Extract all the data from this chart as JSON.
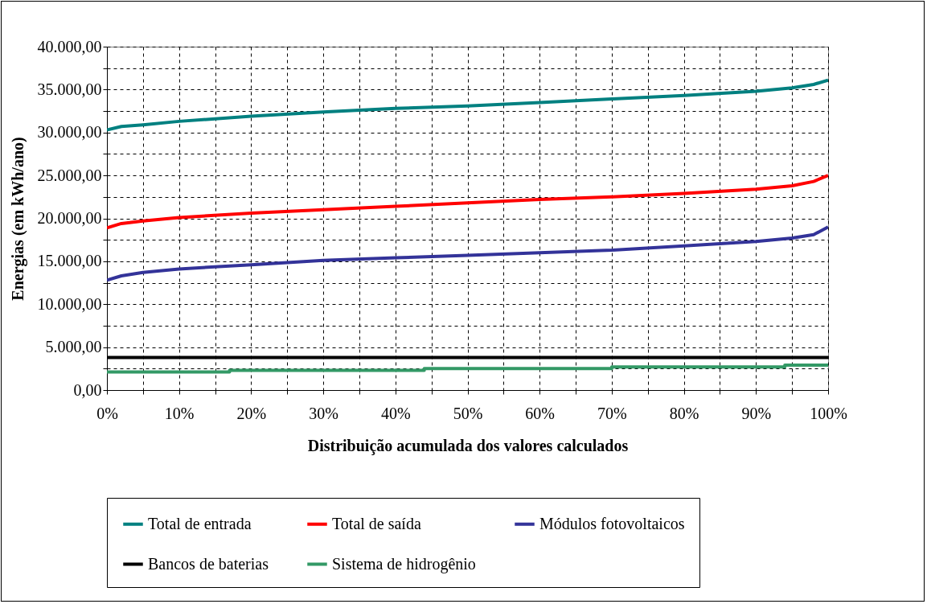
{
  "chart_data": {
    "type": "line",
    "xlabel": "Distribuição acumulada dos valores calculados",
    "ylabel": "Energias (em kWh/ano)",
    "x": [
      0,
      2,
      5,
      10,
      20,
      30,
      40,
      50,
      60,
      70,
      80,
      90,
      95,
      98,
      100
    ],
    "xlim": [
      0,
      100
    ],
    "xticks": [
      {
        "value": 0,
        "label": "0%"
      },
      {
        "value": 5,
        "label": null
      },
      {
        "value": 10,
        "label": "10%"
      },
      {
        "value": 15,
        "label": null
      },
      {
        "value": 20,
        "label": "20%"
      },
      {
        "value": 25,
        "label": null
      },
      {
        "value": 30,
        "label": "30%"
      },
      {
        "value": 35,
        "label": null
      },
      {
        "value": 40,
        "label": "40%"
      },
      {
        "value": 45,
        "label": null
      },
      {
        "value": 50,
        "label": "50%"
      },
      {
        "value": 55,
        "label": null
      },
      {
        "value": 60,
        "label": "60%"
      },
      {
        "value": 65,
        "label": null
      },
      {
        "value": 70,
        "label": "70%"
      },
      {
        "value": 75,
        "label": null
      },
      {
        "value": 80,
        "label": "80%"
      },
      {
        "value": 85,
        "label": null
      },
      {
        "value": 90,
        "label": "90%"
      },
      {
        "value": 95,
        "label": null
      },
      {
        "value": 100,
        "label": "100%"
      }
    ],
    "ylim": [
      0,
      40000
    ],
    "yticks": [
      {
        "value": 0,
        "label": "0,00"
      },
      {
        "value": 2500,
        "label": null
      },
      {
        "value": 5000,
        "label": "5.000,00"
      },
      {
        "value": 7500,
        "label": null
      },
      {
        "value": 10000,
        "label": "10.000,00"
      },
      {
        "value": 12500,
        "label": null
      },
      {
        "value": 15000,
        "label": "15.000,00"
      },
      {
        "value": 17500,
        "label": null
      },
      {
        "value": 20000,
        "label": "20.000,00"
      },
      {
        "value": 22500,
        "label": null
      },
      {
        "value": 25000,
        "label": "25.000,00"
      },
      {
        "value": 27500,
        "label": null
      },
      {
        "value": 30000,
        "label": "30.000,00"
      },
      {
        "value": 32500,
        "label": null
      },
      {
        "value": 35000,
        "label": "35.000,00"
      },
      {
        "value": 37500,
        "label": null
      },
      {
        "value": 40000,
        "label": "40.000,00"
      }
    ],
    "grid": true,
    "legend": "bottom",
    "marker": "none",
    "line_style": "solid",
    "series": [
      {
        "name": "Total de entrada",
        "color": "#008080",
        "values": [
          30300,
          30700,
          30900,
          31300,
          31900,
          32400,
          32800,
          33100,
          33500,
          33900,
          34300,
          34800,
          35200,
          35600,
          36100
        ]
      },
      {
        "name": "Total de saída",
        "color": "#ff0000",
        "values": [
          18900,
          19400,
          19700,
          20100,
          20600,
          21000,
          21400,
          21800,
          22200,
          22500,
          22900,
          23400,
          23800,
          24300,
          25000
        ]
      },
      {
        "name": "Módulos fotovoltaicos",
        "color": "#333399",
        "values": [
          12800,
          13300,
          13700,
          14100,
          14600,
          15100,
          15400,
          15700,
          16000,
          16300,
          16800,
          17300,
          17700,
          18100,
          19000
        ]
      },
      {
        "name": "Bancos de baterias",
        "color": "#000000",
        "values": [
          3800,
          3800,
          3800,
          3800,
          3800,
          3800,
          3800,
          3800,
          3800,
          3800,
          3800,
          3800,
          3800,
          3800,
          3800
        ]
      },
      {
        "name": "Sistema de hidrogênio",
        "color": "#339966",
        "type": "step",
        "x": [
          0,
          17,
          44,
          70,
          94,
          100
        ],
        "values": [
          2100,
          2300,
          2500,
          2700,
          2900,
          2900
        ]
      }
    ]
  }
}
